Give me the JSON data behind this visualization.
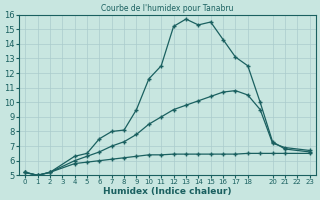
{
  "title": "Courbe de l'humidex pour Tanabru",
  "xlabel": "Humidex (Indice chaleur)",
  "xlim": [
    -0.5,
    23.5
  ],
  "ylim": [
    5,
    16
  ],
  "yticks": [
    5,
    6,
    7,
    8,
    9,
    10,
    11,
    12,
    13,
    14,
    15,
    16
  ],
  "xticks": [
    0,
    1,
    2,
    3,
    4,
    5,
    6,
    7,
    8,
    9,
    10,
    11,
    12,
    13,
    14,
    15,
    16,
    17,
    18,
    20,
    21,
    22,
    23
  ],
  "background_color": "#c8e6e0",
  "grid_color": "#aacccc",
  "line_color": "#1a6060",
  "curve1_x": [
    0,
    1,
    2,
    4,
    5,
    6,
    7,
    8,
    9,
    10,
    11,
    12,
    13,
    14,
    15,
    16,
    17,
    18,
    19,
    20,
    21,
    23
  ],
  "curve1_y": [
    5.2,
    5.0,
    5.2,
    6.3,
    6.5,
    7.5,
    8.0,
    8.1,
    9.5,
    11.6,
    12.5,
    15.2,
    15.7,
    15.3,
    15.5,
    14.3,
    13.1,
    12.5,
    10.0,
    7.3,
    6.8,
    6.6
  ],
  "curve2_x": [
    0,
    1,
    2,
    4,
    5,
    6,
    7,
    8,
    9,
    10,
    11,
    12,
    13,
    14,
    15,
    16,
    17,
    18,
    19,
    20,
    21,
    23
  ],
  "curve2_y": [
    5.2,
    5.0,
    5.2,
    6.0,
    6.3,
    6.6,
    7.0,
    7.3,
    7.8,
    8.5,
    9.0,
    9.5,
    9.8,
    10.1,
    10.4,
    10.7,
    10.8,
    10.5,
    9.5,
    7.2,
    6.9,
    6.7
  ],
  "curve3_x": [
    0,
    1,
    2,
    4,
    5,
    6,
    7,
    8,
    9,
    10,
    11,
    12,
    13,
    14,
    15,
    16,
    17,
    18,
    19,
    20,
    21,
    23
  ],
  "curve3_y": [
    5.2,
    5.0,
    5.2,
    5.8,
    5.9,
    6.0,
    6.1,
    6.2,
    6.3,
    6.4,
    6.4,
    6.45,
    6.45,
    6.45,
    6.45,
    6.45,
    6.45,
    6.5,
    6.5,
    6.5,
    6.5,
    6.5
  ]
}
